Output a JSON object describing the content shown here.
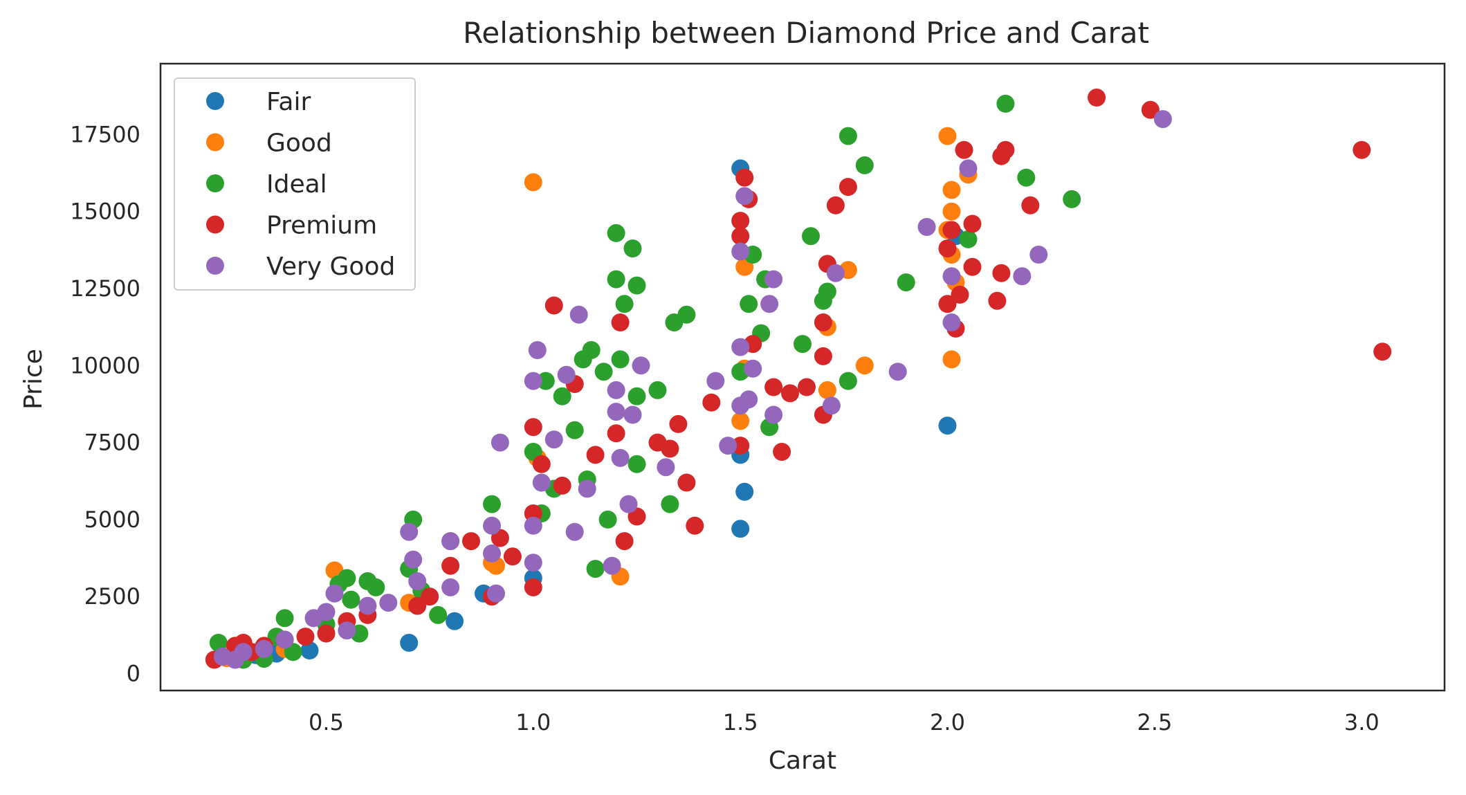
{
  "chart_data": {
    "type": "scatter",
    "title": "Relationship between Diamond Price and Carat",
    "xlabel": "Carat",
    "ylabel": "Price",
    "xlim": [
      0.1,
      3.2
    ],
    "ylim": [
      -550,
      19800
    ],
    "xticks": [
      0.5,
      1.0,
      1.5,
      2.0,
      2.5,
      3.0
    ],
    "xtick_labels": [
      "0.5",
      "1.0",
      "1.5",
      "2.0",
      "2.5",
      "3.0"
    ],
    "yticks": [
      0,
      2500,
      5000,
      7500,
      10000,
      12500,
      15000,
      17500
    ],
    "ytick_labels": [
      "0",
      "2500",
      "5000",
      "7500",
      "10000",
      "12500",
      "15000",
      "17500"
    ],
    "grid": false,
    "legend_position": "top-left",
    "series": [
      {
        "name": "Fair",
        "color": "#1f77b4",
        "points": [
          [
            0.3,
            560
          ],
          [
            0.33,
            600
          ],
          [
            0.38,
            650
          ],
          [
            0.46,
            750
          ],
          [
            0.7,
            1000
          ],
          [
            0.81,
            1700
          ],
          [
            0.88,
            2600
          ],
          [
            1.0,
            3100
          ],
          [
            1.5,
            4700
          ],
          [
            1.51,
            5900
          ],
          [
            1.5,
            7100
          ],
          [
            1.5,
            16400
          ],
          [
            2.0,
            8050
          ],
          [
            2.02,
            14200
          ]
        ]
      },
      {
        "name": "Good",
        "color": "#ff7f0e",
        "points": [
          [
            0.3,
            600
          ],
          [
            0.26,
            500
          ],
          [
            0.4,
            800
          ],
          [
            0.52,
            3350
          ],
          [
            0.7,
            2300
          ],
          [
            0.9,
            3600
          ],
          [
            0.91,
            3500
          ],
          [
            1.0,
            15950
          ],
          [
            1.01,
            7000
          ],
          [
            1.21,
            3150
          ],
          [
            1.5,
            8200
          ],
          [
            1.51,
            9900
          ],
          [
            1.51,
            13200
          ],
          [
            1.71,
            9200
          ],
          [
            1.71,
            11250
          ],
          [
            1.76,
            13100
          ],
          [
            1.8,
            10000
          ],
          [
            2.0,
            17450
          ],
          [
            2.01,
            15000
          ],
          [
            2.01,
            15700
          ],
          [
            2.01,
            13600
          ],
          [
            2.02,
            12700
          ],
          [
            2.01,
            10200
          ],
          [
            2.05,
            16200
          ],
          [
            2.0,
            14400
          ]
        ]
      },
      {
        "name": "Ideal",
        "color": "#2ca02c",
        "points": [
          [
            0.24,
            1000
          ],
          [
            0.3,
            450
          ],
          [
            0.35,
            480
          ],
          [
            0.38,
            1200
          ],
          [
            0.4,
            1800
          ],
          [
            0.42,
            700
          ],
          [
            0.5,
            1600
          ],
          [
            0.53,
            2900
          ],
          [
            0.55,
            3100
          ],
          [
            0.56,
            2400
          ],
          [
            0.58,
            1300
          ],
          [
            0.6,
            3000
          ],
          [
            0.62,
            2800
          ],
          [
            0.7,
            3400
          ],
          [
            0.71,
            5000
          ],
          [
            0.73,
            2700
          ],
          [
            0.77,
            1900
          ],
          [
            0.8,
            4300
          ],
          [
            0.9,
            5500
          ],
          [
            1.0,
            7200
          ],
          [
            1.02,
            5200
          ],
          [
            1.03,
            9500
          ],
          [
            1.05,
            6000
          ],
          [
            1.07,
            9000
          ],
          [
            1.1,
            7900
          ],
          [
            1.12,
            10200
          ],
          [
            1.13,
            6300
          ],
          [
            1.14,
            10500
          ],
          [
            1.15,
            3400
          ],
          [
            1.17,
            9800
          ],
          [
            1.18,
            5000
          ],
          [
            1.2,
            12800
          ],
          [
            1.2,
            14300
          ],
          [
            1.21,
            10200
          ],
          [
            1.22,
            12000
          ],
          [
            1.24,
            13800
          ],
          [
            1.25,
            12600
          ],
          [
            1.25,
            9000
          ],
          [
            1.25,
            6800
          ],
          [
            1.3,
            9200
          ],
          [
            1.33,
            5500
          ],
          [
            1.34,
            11400
          ],
          [
            1.37,
            11650
          ],
          [
            1.5,
            9800
          ],
          [
            1.52,
            12000
          ],
          [
            1.53,
            13600
          ],
          [
            1.55,
            11050
          ],
          [
            1.56,
            12800
          ],
          [
            1.57,
            8000
          ],
          [
            1.65,
            10700
          ],
          [
            1.67,
            14200
          ],
          [
            1.7,
            12100
          ],
          [
            1.71,
            12400
          ],
          [
            1.76,
            17450
          ],
          [
            1.76,
            9500
          ],
          [
            1.8,
            16500
          ],
          [
            1.9,
            12700
          ],
          [
            2.05,
            14100
          ],
          [
            2.14,
            18500
          ],
          [
            2.19,
            16100
          ],
          [
            2.3,
            15400
          ]
        ]
      },
      {
        "name": "Premium",
        "color": "#d62728",
        "points": [
          [
            0.23,
            450
          ],
          [
            0.28,
            900
          ],
          [
            0.3,
            1000
          ],
          [
            0.32,
            700
          ],
          [
            0.35,
            900
          ],
          [
            0.4,
            1100
          ],
          [
            0.45,
            1200
          ],
          [
            0.5,
            1300
          ],
          [
            0.55,
            1700
          ],
          [
            0.6,
            1900
          ],
          [
            0.72,
            2200
          ],
          [
            0.75,
            2500
          ],
          [
            0.8,
            3500
          ],
          [
            0.85,
            4300
          ],
          [
            0.9,
            2500
          ],
          [
            0.92,
            4400
          ],
          [
            0.95,
            3800
          ],
          [
            1.0,
            2800
          ],
          [
            1.0,
            5200
          ],
          [
            1.0,
            8000
          ],
          [
            1.02,
            6800
          ],
          [
            1.05,
            11950
          ],
          [
            1.07,
            6100
          ],
          [
            1.1,
            9400
          ],
          [
            1.15,
            7100
          ],
          [
            1.2,
            7800
          ],
          [
            1.21,
            11400
          ],
          [
            1.22,
            4300
          ],
          [
            1.25,
            5100
          ],
          [
            1.3,
            7500
          ],
          [
            1.33,
            7300
          ],
          [
            1.35,
            8100
          ],
          [
            1.37,
            6200
          ],
          [
            1.39,
            4800
          ],
          [
            1.43,
            8800
          ],
          [
            1.5,
            7400
          ],
          [
            1.5,
            14200
          ],
          [
            1.5,
            14700
          ],
          [
            1.51,
            16100
          ],
          [
            1.52,
            15400
          ],
          [
            1.53,
            10700
          ],
          [
            1.58,
            9300
          ],
          [
            1.6,
            7200
          ],
          [
            1.62,
            9100
          ],
          [
            1.66,
            9300
          ],
          [
            1.7,
            8400
          ],
          [
            1.7,
            10300
          ],
          [
            1.7,
            11400
          ],
          [
            1.71,
            13300
          ],
          [
            1.73,
            15200
          ],
          [
            1.76,
            15800
          ],
          [
            2.0,
            12000
          ],
          [
            2.0,
            13800
          ],
          [
            2.01,
            14400
          ],
          [
            2.02,
            11200
          ],
          [
            2.03,
            12300
          ],
          [
            2.04,
            17000
          ],
          [
            2.06,
            14600
          ],
          [
            2.06,
            13200
          ],
          [
            2.12,
            12100
          ],
          [
            2.13,
            13000
          ],
          [
            2.13,
            16800
          ],
          [
            2.14,
            17000
          ],
          [
            2.2,
            15200
          ],
          [
            2.36,
            18700
          ],
          [
            2.49,
            18300
          ],
          [
            3.0,
            17000
          ],
          [
            3.05,
            10450
          ]
        ]
      },
      {
        "name": "Very Good",
        "color": "#9467bd",
        "points": [
          [
            0.25,
            550
          ],
          [
            0.28,
            450
          ],
          [
            0.3,
            700
          ],
          [
            0.35,
            800
          ],
          [
            0.4,
            1100
          ],
          [
            0.47,
            1800
          ],
          [
            0.5,
            2000
          ],
          [
            0.52,
            2600
          ],
          [
            0.55,
            1400
          ],
          [
            0.6,
            2200
          ],
          [
            0.65,
            2300
          ],
          [
            0.7,
            4600
          ],
          [
            0.71,
            3700
          ],
          [
            0.72,
            3000
          ],
          [
            0.8,
            2800
          ],
          [
            0.8,
            4300
          ],
          [
            0.9,
            3900
          ],
          [
            0.9,
            4800
          ],
          [
            0.91,
            2600
          ],
          [
            0.92,
            7500
          ],
          [
            1.0,
            3600
          ],
          [
            1.0,
            4800
          ],
          [
            1.0,
            9500
          ],
          [
            1.01,
            10500
          ],
          [
            1.02,
            6200
          ],
          [
            1.05,
            7600
          ],
          [
            1.08,
            9700
          ],
          [
            1.1,
            4600
          ],
          [
            1.11,
            11650
          ],
          [
            1.13,
            6000
          ],
          [
            1.19,
            3500
          ],
          [
            1.2,
            8500
          ],
          [
            1.2,
            9200
          ],
          [
            1.21,
            7000
          ],
          [
            1.23,
            5500
          ],
          [
            1.24,
            8400
          ],
          [
            1.26,
            10000
          ],
          [
            1.32,
            6700
          ],
          [
            1.44,
            9500
          ],
          [
            1.47,
            7400
          ],
          [
            1.5,
            8700
          ],
          [
            1.5,
            10600
          ],
          [
            1.5,
            13700
          ],
          [
            1.51,
            15500
          ],
          [
            1.52,
            8900
          ],
          [
            1.53,
            9900
          ],
          [
            1.58,
            8400
          ],
          [
            1.58,
            12800
          ],
          [
            1.57,
            12000
          ],
          [
            1.72,
            8700
          ],
          [
            1.73,
            13000
          ],
          [
            1.88,
            9800
          ],
          [
            1.95,
            14500
          ],
          [
            2.01,
            11400
          ],
          [
            2.01,
            12900
          ],
          [
            2.05,
            16400
          ],
          [
            2.18,
            12900
          ],
          [
            2.22,
            13600
          ],
          [
            2.52,
            18000
          ]
        ]
      }
    ]
  }
}
